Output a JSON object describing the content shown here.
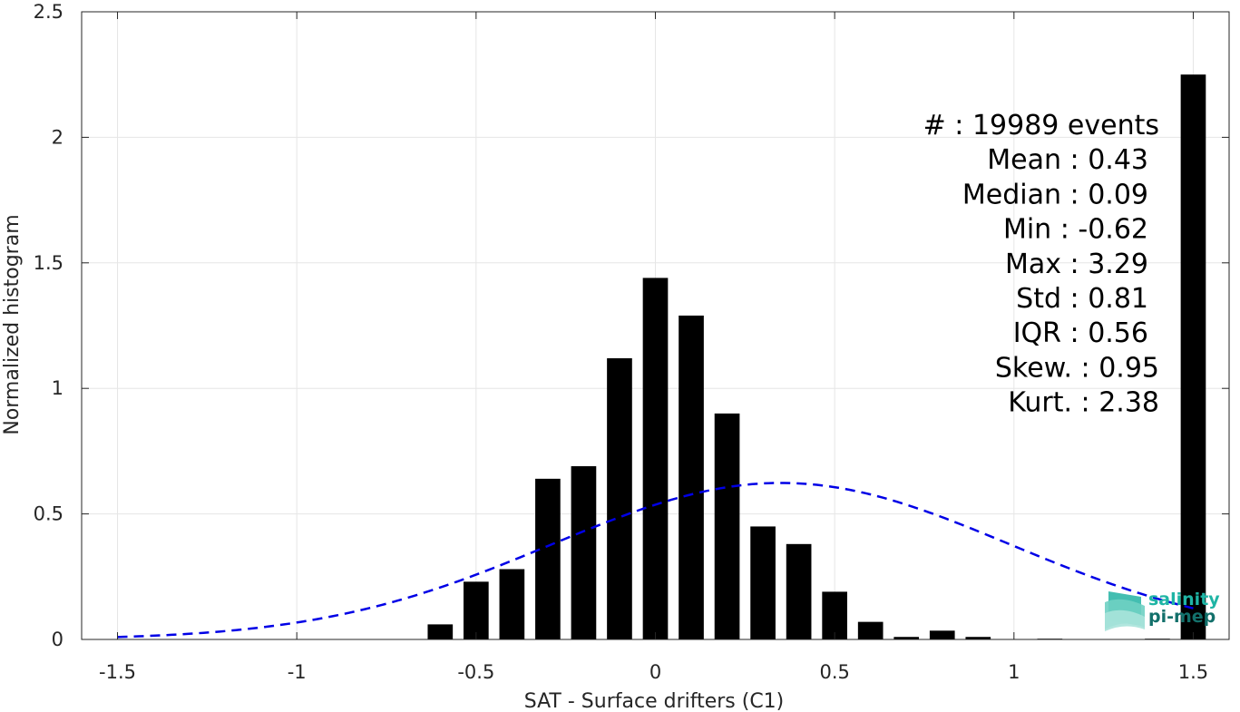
{
  "chart_data": {
    "type": "bar",
    "xlabel": "SAT - Surface drifters (C1)",
    "ylabel": "Normalized histogram",
    "xlim": [
      -1.6,
      1.6
    ],
    "ylim": [
      0,
      2.5
    ],
    "xticks": [
      -1.5,
      -1,
      -0.5,
      0,
      0.5,
      1,
      1.5
    ],
    "xtick_labels": [
      "-1.5",
      "-1",
      "-0.5",
      "0",
      "0.5",
      "1",
      "1.5"
    ],
    "yticks": [
      0,
      0.5,
      1,
      1.5,
      2,
      2.5
    ],
    "ytick_labels": [
      "0",
      "0.5",
      "1",
      "1.5",
      "2",
      "2.5"
    ],
    "grid": true,
    "bar_color": "#000000",
    "bar_width": 0.07,
    "bars": {
      "x": [
        -0.6,
        -0.5,
        -0.4,
        -0.3,
        -0.2,
        -0.1,
        0.0,
        0.1,
        0.2,
        0.3,
        0.4,
        0.5,
        0.6,
        0.7,
        0.8,
        0.9,
        1.0,
        1.1,
        1.2,
        1.3,
        1.4,
        1.5
      ],
      "values": [
        0.06,
        0.23,
        0.28,
        0.64,
        0.69,
        1.12,
        1.44,
        1.29,
        0.9,
        0.45,
        0.38,
        0.19,
        0.07,
        0.01,
        0.035,
        0.01,
        0.0,
        0.003,
        0.0,
        0.0,
        0.003,
        2.25
      ]
    },
    "fit_curve": {
      "type": "normal",
      "mean": 0.35,
      "std": 0.64,
      "x_range": [
        -1.5,
        1.5
      ],
      "color": "#0000e6",
      "style": "dashed"
    },
    "stats": [
      {
        "label": "#  : 19989 events"
      },
      {
        "label": "Mean : 0.43"
      },
      {
        "label": "Median : 0.09"
      },
      {
        "label": "Min : -0.62"
      },
      {
        "label": "Max : 3.29"
      },
      {
        "label": "Std : 0.81"
      },
      {
        "label": "IQR : 0.56"
      },
      {
        "label": "Skew. : 0.95"
      },
      {
        "label": "Kurt. : 2.38"
      }
    ]
  },
  "logo": {
    "line1": "salinity",
    "line2": "pi-mep",
    "color1": "#1fb5a5",
    "color2": "#13706b"
  }
}
